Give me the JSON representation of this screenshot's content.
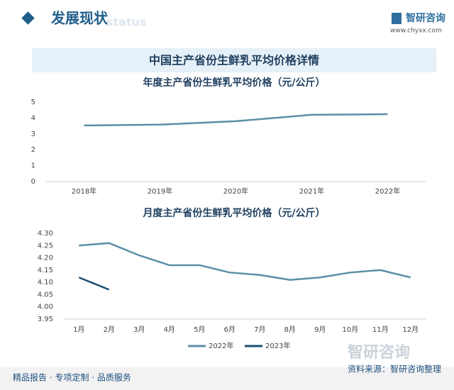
{
  "header": {
    "title": "发展现状",
    "subtitle": "status",
    "logo": "智研咨询",
    "url": "www.chyxx.com"
  },
  "panel_title": "中国主产省份生鲜乳平均价格详情",
  "chart_data": [
    {
      "type": "line",
      "title": "年度主产省份生鲜乳平均价格（元/公斤）",
      "categories": [
        "2018年",
        "2019年",
        "2020年",
        "2021年",
        "2022年"
      ],
      "series": [
        {
          "name": null,
          "color": "#5b8fa8",
          "values": [
            3.53,
            3.58,
            3.8,
            4.2,
            4.24
          ]
        }
      ],
      "ylim": [
        0,
        5
      ],
      "yticks": [
        0,
        1,
        2,
        3,
        4,
        5
      ],
      "grid": false
    },
    {
      "type": "line",
      "title": "月度主产省份生鲜乳平均价格（元/公斤）",
      "categories": [
        "1月",
        "2月",
        "3月",
        "4月",
        "5月",
        "6月",
        "7月",
        "8月",
        "9月",
        "10月",
        "11月",
        "12月"
      ],
      "series": [
        {
          "name": "2022年",
          "color": "#5b8fa8",
          "values": [
            4.25,
            4.26,
            4.21,
            4.17,
            4.17,
            4.14,
            4.13,
            4.11,
            4.12,
            4.14,
            4.15,
            4.12
          ]
        },
        {
          "name": "2023年",
          "color": "#1b4f72",
          "values": [
            4.12,
            4.07,
            null,
            null,
            null,
            null,
            null,
            null,
            null,
            null,
            null,
            null
          ]
        }
      ],
      "ylim": [
        3.95,
        4.3
      ],
      "yticks": [
        3.95,
        {
          "value": 4.0,
          "label": "4.00"
        },
        4.05,
        {
          "value": 4.1,
          "label": "4.10"
        },
        4.15,
        {
          "value": 4.2,
          "label": "4.20"
        },
        4.25,
        {
          "value": 4.3,
          "label": "4.30"
        }
      ],
      "grid": false,
      "legend": "bottom"
    }
  ],
  "footer": {
    "left": "精品报告 · 专项定制 · 品质服务",
    "source": "资料来源：智研咨询整理",
    "logo": "智研咨询"
  }
}
